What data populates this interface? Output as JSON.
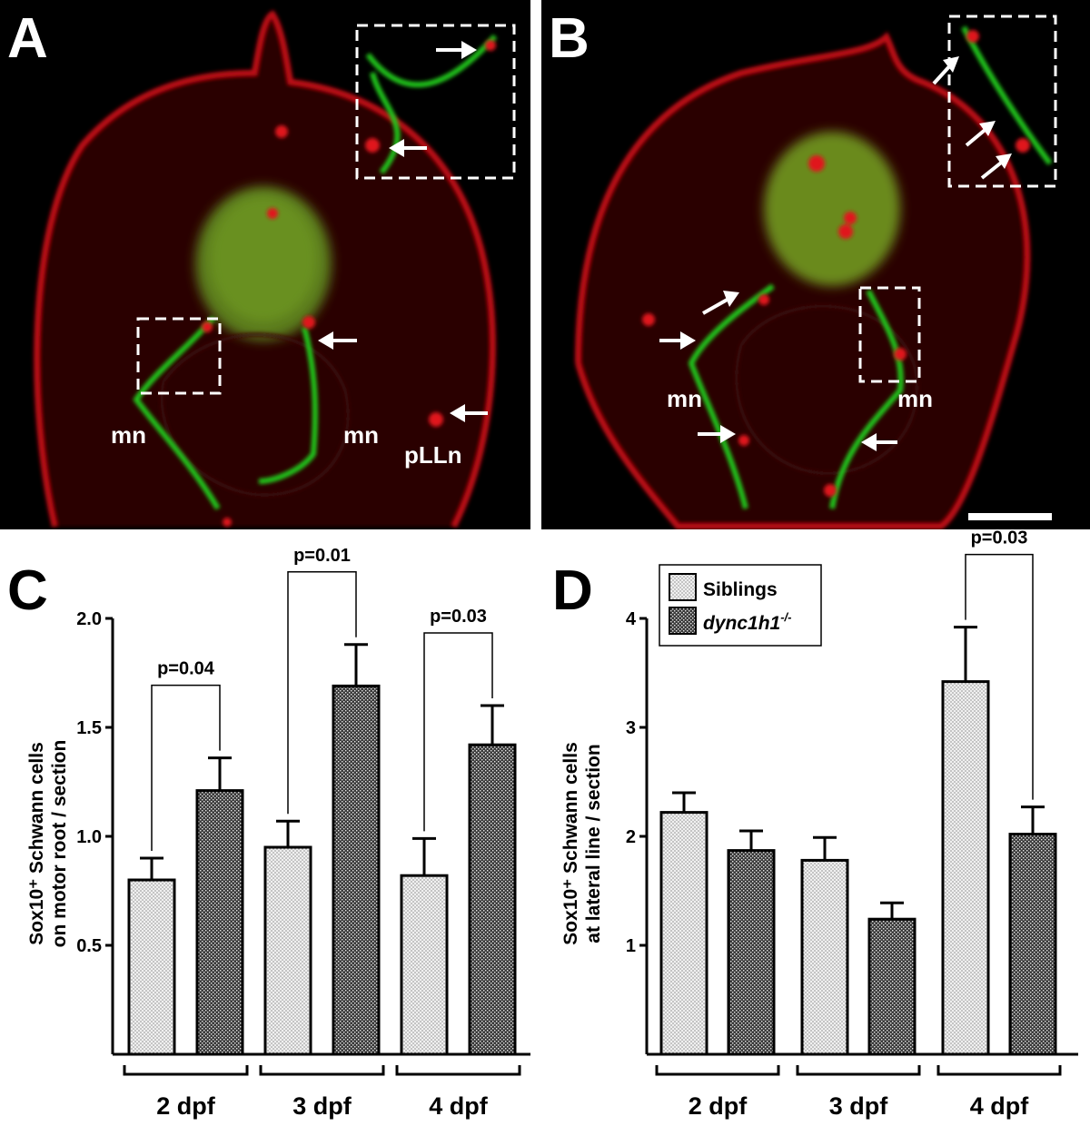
{
  "panels": {
    "a": {
      "letter": "A",
      "labels": {
        "mn_left": "mn",
        "mn_right": "mn",
        "pLLn": "pLLn"
      }
    },
    "b": {
      "letter": "B",
      "labels": {
        "mn_left": "mn",
        "mn_right": "mn"
      }
    }
  },
  "colors": {
    "siblings_fill": "#f0f0f0",
    "mutant_fill": "#3a3a3a",
    "microscopy_red": "#e0141e",
    "microscopy_green": "#22c81a",
    "background": "#000000"
  },
  "chart_data": [
    {
      "panel": "C",
      "type": "bar",
      "ylabel_line1": "Sox10⁺ Schwann cells",
      "ylabel_line2": "on motor root / section",
      "ylim": [
        0,
        2.0
      ],
      "yticks": [
        "0.5",
        "1.0",
        "1.5",
        "2.0"
      ],
      "ytick_values": [
        0.5,
        1.0,
        1.5,
        2.0
      ],
      "categories": [
        "2 dpf",
        "3 dpf",
        "4 dpf"
      ],
      "series": [
        {
          "name": "Siblings",
          "values": [
            0.8,
            0.95,
            0.82
          ],
          "errors": [
            0.1,
            0.12,
            0.17
          ]
        },
        {
          "name": "dync1h1⁻/⁻",
          "values": [
            1.21,
            1.69,
            1.42
          ],
          "errors": [
            0.15,
            0.19,
            0.18
          ]
        }
      ],
      "pvalues": [
        "p=0.04",
        "p=0.01",
        "p=0.03"
      ],
      "pvalue_groups": [
        0,
        1,
        2
      ],
      "grid": false,
      "legend": null
    },
    {
      "panel": "D",
      "type": "bar",
      "ylabel_line1": "Sox10⁺ Schwann cells",
      "ylabel_line2": "at lateral line / section",
      "ylim": [
        0,
        4
      ],
      "yticks": [
        "1",
        "2",
        "3",
        "4"
      ],
      "ytick_values": [
        1,
        2,
        3,
        4
      ],
      "categories": [
        "2 dpf",
        "3 dpf",
        "4 dpf"
      ],
      "series": [
        {
          "name": "Siblings",
          "values": [
            2.22,
            1.78,
            3.42
          ],
          "errors": [
            0.18,
            0.21,
            0.5
          ]
        },
        {
          "name": "dync1h1⁻/⁻",
          "values": [
            1.87,
            1.24,
            2.02
          ],
          "errors": [
            0.18,
            0.15,
            0.25
          ]
        }
      ],
      "pvalues": [
        "p=0.03"
      ],
      "pvalue_groups": [
        2
      ],
      "grid": false,
      "legend": {
        "position": "top-left",
        "entries": [
          "Siblings",
          "dync1h1"
        ],
        "mutant_superscript": "-/-"
      }
    }
  ]
}
